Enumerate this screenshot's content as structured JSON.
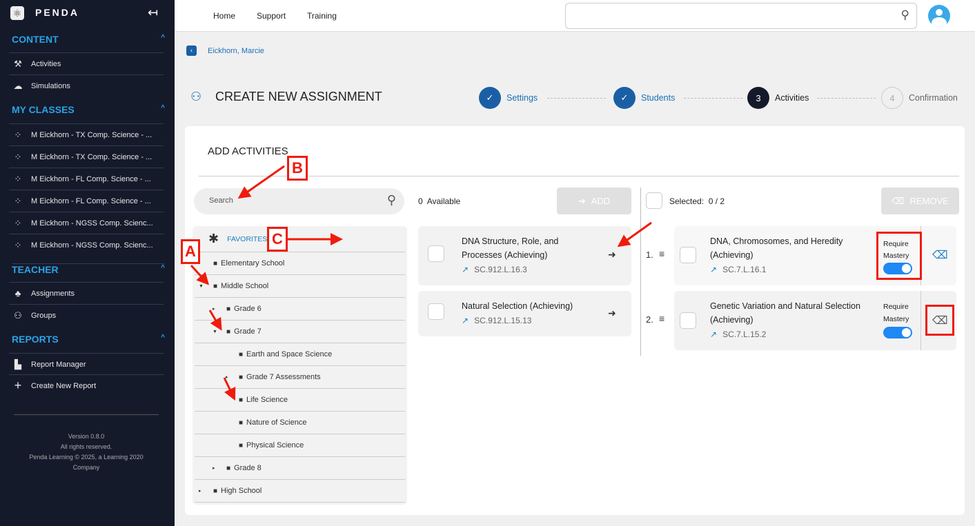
{
  "sidebar": {
    "brand": "PENDA",
    "sections": [
      {
        "label": "CONTENT",
        "items": [
          {
            "label": "Activities",
            "icon": "dumbbell-icon"
          },
          {
            "label": "Simulations",
            "icon": "cloud-download-icon"
          }
        ]
      },
      {
        "label": "MY CLASSES",
        "items": [
          {
            "label": "M Eickhorn - TX Comp. Science - ..."
          },
          {
            "label": "M Eickhorn - TX Comp. Science - ..."
          },
          {
            "label": "M Eickhorn - FL Comp. Science - ..."
          },
          {
            "label": "M Eickhorn - FL Comp. Science - ..."
          },
          {
            "label": "M Eickhorn - NGSS Comp. Scienc..."
          },
          {
            "label": "M Eickhorn - NGSS Comp. Scienc..."
          }
        ]
      },
      {
        "label": "TEACHER",
        "items": [
          {
            "label": "Assignments"
          },
          {
            "label": "Groups"
          }
        ]
      },
      {
        "label": "REPORTS",
        "items": [
          {
            "label": "Report Manager"
          },
          {
            "label": "Create New Report"
          }
        ]
      }
    ],
    "footer": [
      "Version 0.8.0",
      "All rights reserved.",
      "Penda Learning © 2025, a Learning 2020",
      "Company"
    ]
  },
  "topnav": [
    "Home",
    "Support",
    "Training"
  ],
  "breadcrumb": "Eickhorn, Marcie",
  "page_title": "CREATE NEW ASSIGNMENT",
  "steps": [
    {
      "n": "✓",
      "label": "Settings",
      "state": "done"
    },
    {
      "n": "✓",
      "label": "Students",
      "state": "done"
    },
    {
      "n": "3",
      "label": "Activities",
      "state": "current"
    },
    {
      "n": "4",
      "label": "Confirmation",
      "state": "todo"
    }
  ],
  "section_title": "ADD ACTIVITIES",
  "search_placeholder": "Search",
  "tree": [
    {
      "label": "FAVORITES"
    },
    {
      "label": "Elementary School"
    },
    {
      "label": "Middle School"
    },
    {
      "label": "Grade 6"
    },
    {
      "label": "Grade 7"
    },
    {
      "label": "Earth and Space Science"
    },
    {
      "label": "Grade 7 Assessments"
    },
    {
      "label": "Life Science"
    },
    {
      "label": "Nature of Science"
    },
    {
      "label": "Physical Science"
    },
    {
      "label": "Grade 8"
    },
    {
      "label": "High School"
    }
  ],
  "available": {
    "count": "0",
    "label": "Available",
    "add": "ADD",
    "items": [
      {
        "title": "DNA Structure, Role, and Processes (Achieving)",
        "code": "SC.912.L.16.3"
      },
      {
        "title": "Natural Selection (Achieving)",
        "code": "SC.912.L.15.13"
      }
    ]
  },
  "selected": {
    "label": "Selected:",
    "count": "0 / 2",
    "remove": "REMOVE",
    "mastery": "Require Mastery",
    "items": [
      {
        "num": "1.",
        "title": "DNA, Chromosomes, and Heredity (Achieving)",
        "code": "SC.7.L.16.1",
        "require_mastery": true
      },
      {
        "num": "2.",
        "title": "Genetic Variation and Natural Selection (Achieving)",
        "code": "SC.7.L.15.2",
        "require_mastery": true
      }
    ]
  },
  "annotations": {
    "a": "A",
    "b": "B",
    "c": "C",
    "color": "#f01b0c"
  },
  "colors": {
    "sidebar": "#151a2b",
    "accent": "#2aa3e6",
    "primary": "#1a5fa5",
    "toggle": "#1e88f5"
  }
}
